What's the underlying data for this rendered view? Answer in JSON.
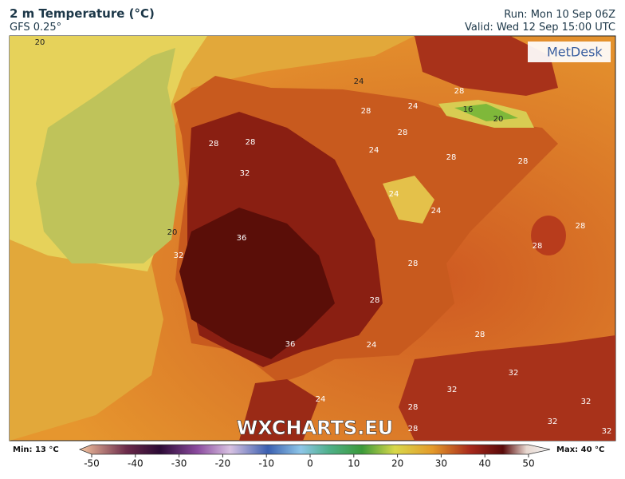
{
  "header": {
    "title": "2 m Temperature (°C)",
    "subtitle": "GFS 0.25°",
    "run": "Run: Mon 10 Sep 06Z",
    "valid": "Valid: Wed 12 Sep 15:00 UTC"
  },
  "logo": "MetDesk",
  "watermark": "WXCHARTS.EU",
  "contour_labels": [
    20,
    24,
    28,
    24,
    16,
    20,
    28,
    28,
    28,
    28,
    24,
    28,
    28,
    32,
    24,
    24,
    20,
    36,
    28,
    28,
    32,
    28,
    28,
    28,
    36,
    24,
    32,
    32,
    24,
    32,
    28,
    32,
    28,
    32
  ],
  "colorbar": {
    "min_label": "Min: 13 °C",
    "max_label": "Max: 40 °C",
    "ticks": [
      -50,
      -40,
      -30,
      -20,
      -10,
      0,
      10,
      20,
      30,
      40,
      50
    ]
  }
}
